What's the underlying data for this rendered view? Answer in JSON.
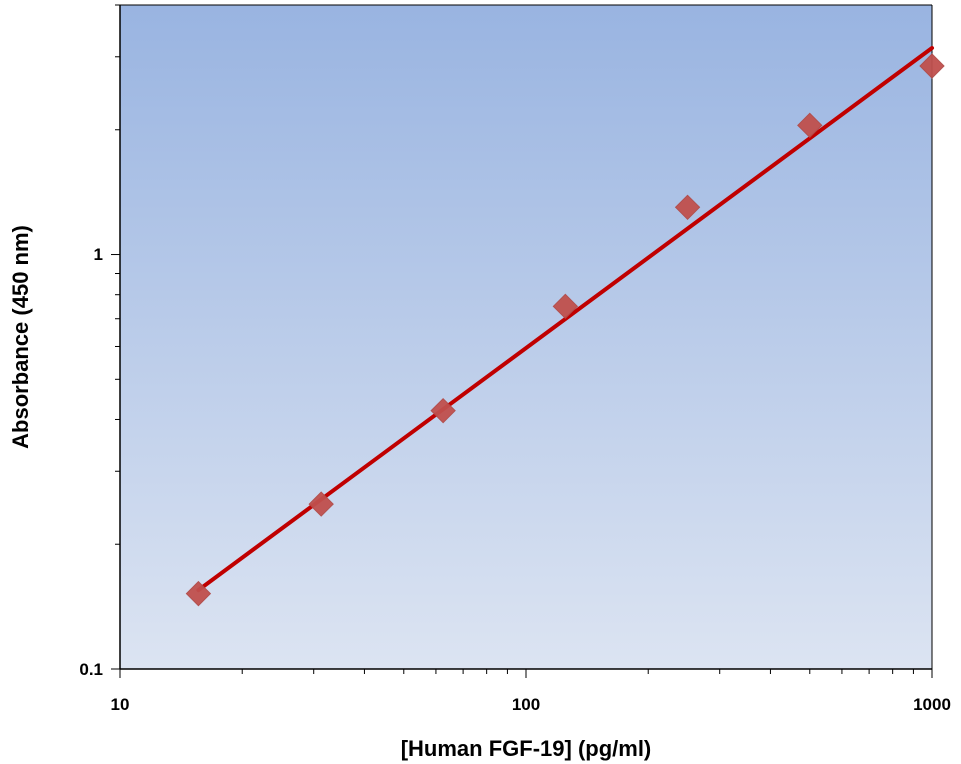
{
  "chart_data": {
    "type": "scatter",
    "xlabel": "[Human FGF-19] (pg/ml)",
    "ylabel": "Absorbance (450 nm)",
    "x_scale": "log",
    "y_scale": "log",
    "xlim": [
      10,
      1000
    ],
    "ylim": [
      0.1,
      4
    ],
    "x_tick_labels": [
      "10",
      "100",
      "1000"
    ],
    "y_tick_labels": [
      "0.1",
      "1"
    ],
    "grid": false,
    "legend": "none",
    "series": [
      {
        "type": "scatter",
        "marker": "diamond",
        "color": "#C0504D",
        "x": [
          15.6,
          31.3,
          62.5,
          125,
          250,
          500,
          1000
        ],
        "y": [
          0.152,
          0.25,
          0.42,
          0.75,
          1.3,
          2.05,
          2.85
        ]
      },
      {
        "type": "line",
        "fit": "power",
        "color": "#C00000",
        "x": [
          15.6,
          1000
        ],
        "y": [
          0.155,
          3.15
        ]
      }
    ],
    "plot_background": [
      "#99B4E1",
      "#DCE4F2"
    ]
  }
}
